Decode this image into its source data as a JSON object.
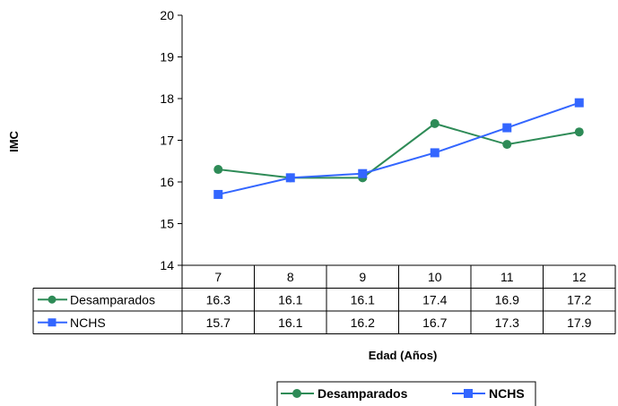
{
  "chart_data": {
    "type": "line",
    "title": "",
    "xlabel": "Edad (Años)",
    "ylabel": "IMC",
    "categories": [
      "7",
      "8",
      "9",
      "10",
      "11",
      "12"
    ],
    "ylim": [
      14,
      20
    ],
    "yticks": [
      14,
      15,
      16,
      17,
      18,
      19,
      20
    ],
    "grid": false,
    "legend_position": "bottom",
    "data_table": true,
    "series": [
      {
        "name": "Desamparados",
        "values": [
          16.3,
          16.1,
          16.1,
          17.4,
          16.9,
          17.2
        ],
        "color": "#2e8b57",
        "marker": "circle"
      },
      {
        "name": "NCHS",
        "values": [
          15.7,
          16.1,
          16.2,
          16.7,
          17.3,
          17.9
        ],
        "color": "#3366ff",
        "marker": "square"
      }
    ]
  }
}
